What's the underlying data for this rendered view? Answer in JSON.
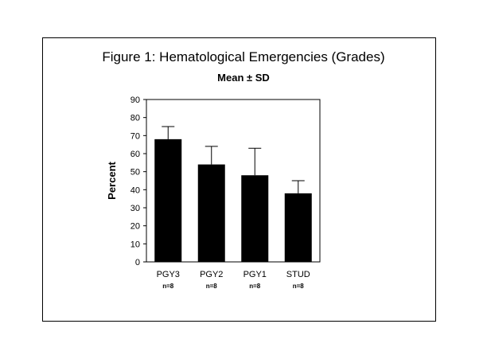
{
  "chart_data": {
    "type": "bar",
    "title": "Figure 1:   Hematological Emergencies (Grades)",
    "subtitle": "Mean ± SD",
    "xlabel": "",
    "ylabel": "Percent",
    "ylim": [
      0,
      90
    ],
    "yticks": [
      "0",
      "10",
      "20",
      "30",
      "40",
      "50",
      "60",
      "70",
      "80",
      "90"
    ],
    "categories": [
      "PGY3",
      "PGY2",
      "PGY1",
      "STUD"
    ],
    "sample_sizes": [
      "n=8",
      "n=8",
      "n=8",
      "n=8"
    ],
    "values": [
      68,
      54,
      48,
      38
    ],
    "sd": [
      7,
      10,
      15,
      7
    ],
    "grid": false,
    "bar_color": "#000000"
  }
}
